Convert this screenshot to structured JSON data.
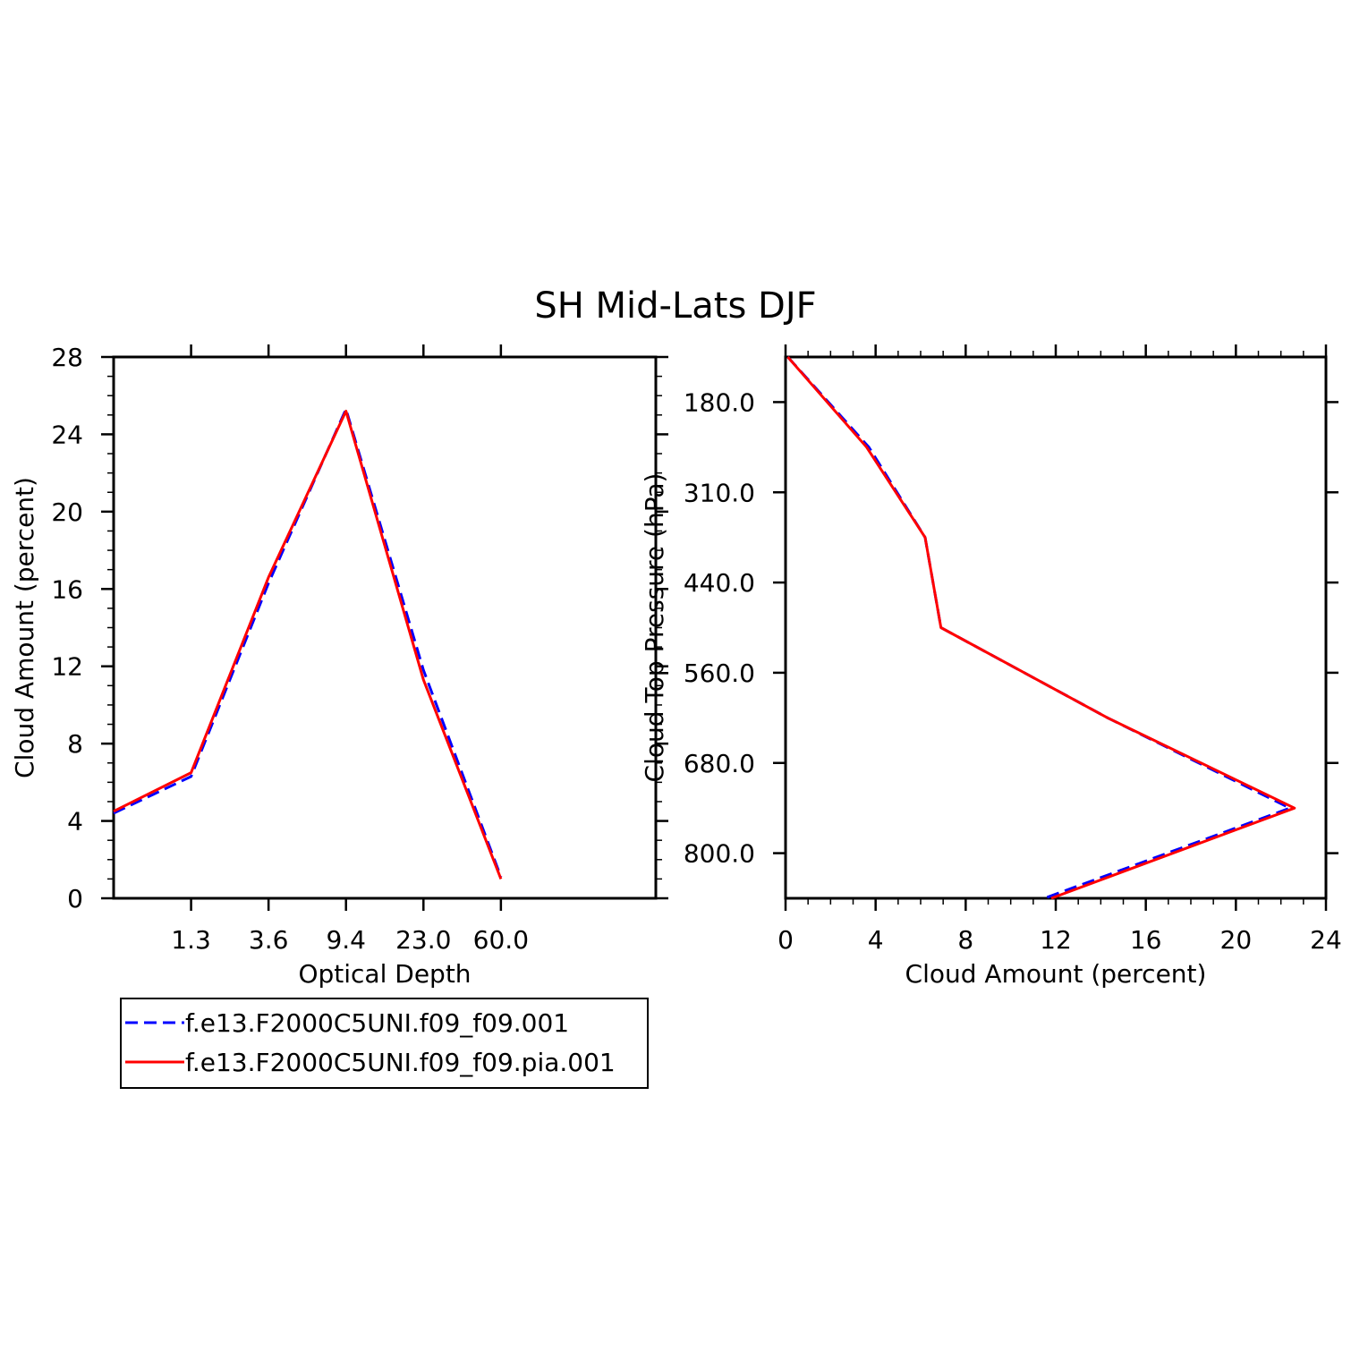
{
  "figure_title": "SH Mid-Lats DJF",
  "colors": {
    "series1": "#0000ff",
    "series2": "#ff0000"
  },
  "legend": {
    "placement": "below left panel",
    "entries": [
      {
        "label": "f.e13.F2000C5UNI.f09_f09.001",
        "color": "#0000ff",
        "style": "dashed"
      },
      {
        "label": "f.e13.F2000C5UNI.f09_f09.pia.001",
        "color": "#ff0000",
        "style": "solid"
      }
    ]
  },
  "chart_data": [
    {
      "type": "line",
      "xlabel": "Optical Depth",
      "ylabel": "Cloud Amount (percent)",
      "x_tick_labels": [
        "1.3",
        "3.6",
        "9.4",
        "23.0",
        "60.0"
      ],
      "x_bins": 7,
      "ylim": [
        0,
        28
      ],
      "y_ticks": [
        0,
        4,
        8,
        12,
        16,
        20,
        24,
        28
      ],
      "series": [
        {
          "name": "f.e13.F2000C5UNI.f09_f09.001",
          "color": "#0000ff",
          "style": "dashed",
          "values": [
            4.4,
            6.3,
            16.3,
            25.3,
            11.8,
            1.1
          ]
        },
        {
          "name": "f.e13.F2000C5UNI.f09_f09.pia.001",
          "color": "#ff0000",
          "style": "solid",
          "values": [
            4.5,
            6.5,
            16.6,
            25.2,
            11.3,
            1.0
          ]
        }
      ]
    },
    {
      "type": "line",
      "xlabel": "Cloud Amount (percent)",
      "ylabel": "Cloud Top Pressure (hPa)",
      "xlim": [
        0,
        24
      ],
      "x_ticks": [
        0,
        4,
        8,
        12,
        16,
        20,
        24
      ],
      "y_tick_labels": [
        "180.0",
        "310.0",
        "440.0",
        "560.0",
        "680.0",
        "800.0"
      ],
      "y_levels": 7,
      "series": [
        {
          "name": "f.e13.F2000C5UNI.f09_f09.001",
          "color": "#0000ff",
          "style": "dashed",
          "values": [
            0.1,
            3.7,
            6.2,
            6.9,
            14.3,
            22.4,
            11.5
          ]
        },
        {
          "name": "f.e13.F2000C5UNI.f09_f09.pia.001",
          "color": "#ff0000",
          "style": "solid",
          "values": [
            0.1,
            3.6,
            6.2,
            6.9,
            14.3,
            22.6,
            11.8
          ]
        }
      ]
    }
  ]
}
